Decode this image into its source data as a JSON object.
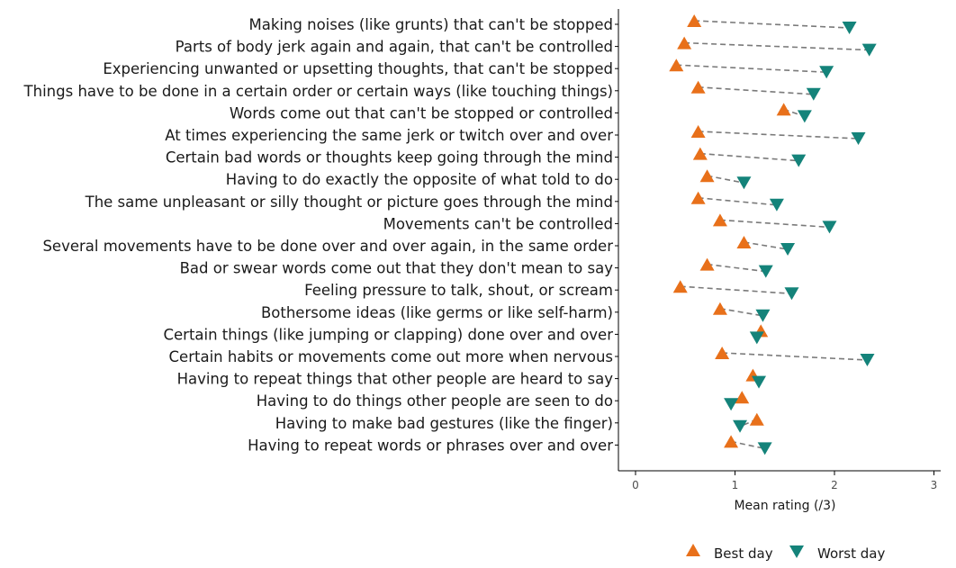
{
  "chart_data": {
    "type": "scatter",
    "categories": [
      "Making noises (like grunts) that can't be stopped",
      "Parts of body jerk again and again, that can't be controlled",
      "Experiencing unwanted or upsetting thoughts, that can't be stopped",
      "Things have to be done in a certain order or certain ways (like touching things)",
      "Words come out that can't be stopped or controlled",
      "At times experiencing the same jerk or twitch over and over",
      "Certain bad words or thoughts keep going through the mind",
      "Having to do exactly the opposite of what told to do",
      "The same unpleasant or silly thought or picture goes through the mind",
      "Movements can't be controlled",
      "Several movements have to be done over and over again, in the same order",
      "Bad or swear words come out that they don't mean to say",
      "Feeling pressure to talk, shout, or scream",
      "Bothersome ideas (like germs or like self-harm)",
      "Certain things (like jumping or clapping) done over and over",
      "Certain habits or movements come out more when nervous",
      "Having to repeat things that other people are heard to say",
      "Having to do things other people are seen to do",
      "Having to make bad gestures (like the finger)",
      "Having to repeat words or phrases over and over"
    ],
    "series": [
      {
        "name": "Best day",
        "marker": "triangle-up",
        "color": "#E8701A",
        "values": [
          0.59,
          0.49,
          0.41,
          0.63,
          1.49,
          0.63,
          0.65,
          0.72,
          0.63,
          0.85,
          1.09,
          0.72,
          0.45,
          0.85,
          1.26,
          0.87,
          1.18,
          1.07,
          1.22,
          0.96
        ]
      },
      {
        "name": "Worst day",
        "marker": "triangle-down",
        "color": "#14837A",
        "values": [
          2.15,
          2.35,
          1.92,
          1.79,
          1.7,
          2.24,
          1.64,
          1.09,
          1.42,
          1.95,
          1.53,
          1.31,
          1.57,
          1.28,
          1.22,
          2.33,
          1.24,
          0.96,
          1.05,
          1.3
        ]
      }
    ],
    "xlabel": "Mean rating (/3)",
    "xticks": [
      "0",
      "1",
      "2",
      "3"
    ],
    "xlim": [
      -0.17,
      3.03
    ],
    "legend": "bottom",
    "connector": "dashed",
    "connector_color": "#7a7a7a"
  }
}
